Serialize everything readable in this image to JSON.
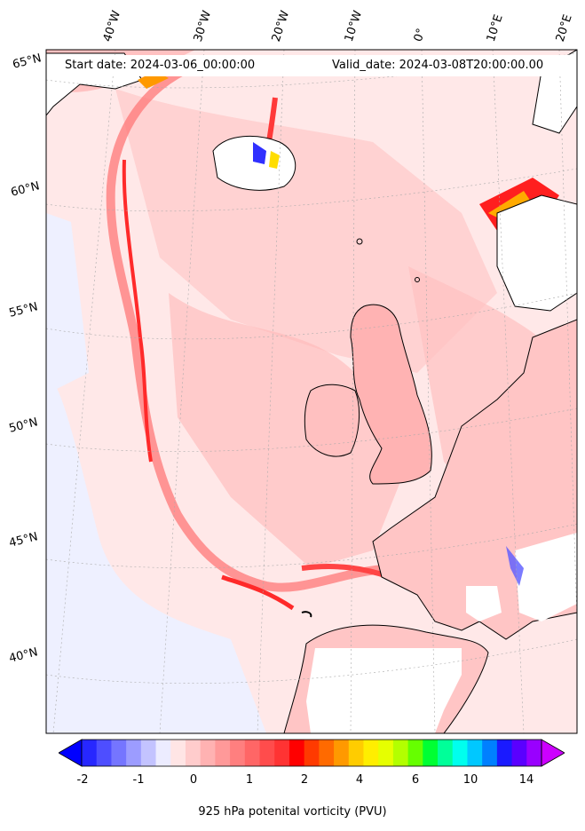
{
  "header": {
    "start_date": "Start date: 2024-03-06_00:00:00",
    "valid_date": "Valid_date: 2024-03-08T20:00:00.00"
  },
  "longitude_labels": [
    "40°W",
    "30°W",
    "20°W",
    "10°W",
    "0°",
    "10°E",
    "20°E"
  ],
  "latitude_labels": [
    "65°N",
    "60°N",
    "55°N",
    "50°N",
    "45°N",
    "40°N"
  ],
  "colorbar": {
    "ticks": [
      "-2",
      "-1",
      "0",
      "1",
      "2",
      "4",
      "6",
      "10",
      "14"
    ],
    "label": "925 hPa potenital vorticity (PVU)",
    "colors": [
      "#0000ff",
      "#2727ff",
      "#4e4eff",
      "#7575ff",
      "#9c9cff",
      "#c3c3ff",
      "#ececff",
      "#ffe5e5",
      "#ffcccc",
      "#ffb2b2",
      "#ff9999",
      "#ff7f7f",
      "#ff6666",
      "#ff4c4c",
      "#ff3333",
      "#ff0000",
      "#ff3a00",
      "#ff6a00",
      "#ff9900",
      "#ffcc00",
      "#ffee00",
      "#e6ff00",
      "#b3ff00",
      "#66ff00",
      "#00ff33",
      "#00ff99",
      "#00ffee",
      "#00c8ff",
      "#0080ff",
      "#1a1aff",
      "#5a00ff",
      "#9900ff",
      "#cc00ff"
    ]
  }
}
